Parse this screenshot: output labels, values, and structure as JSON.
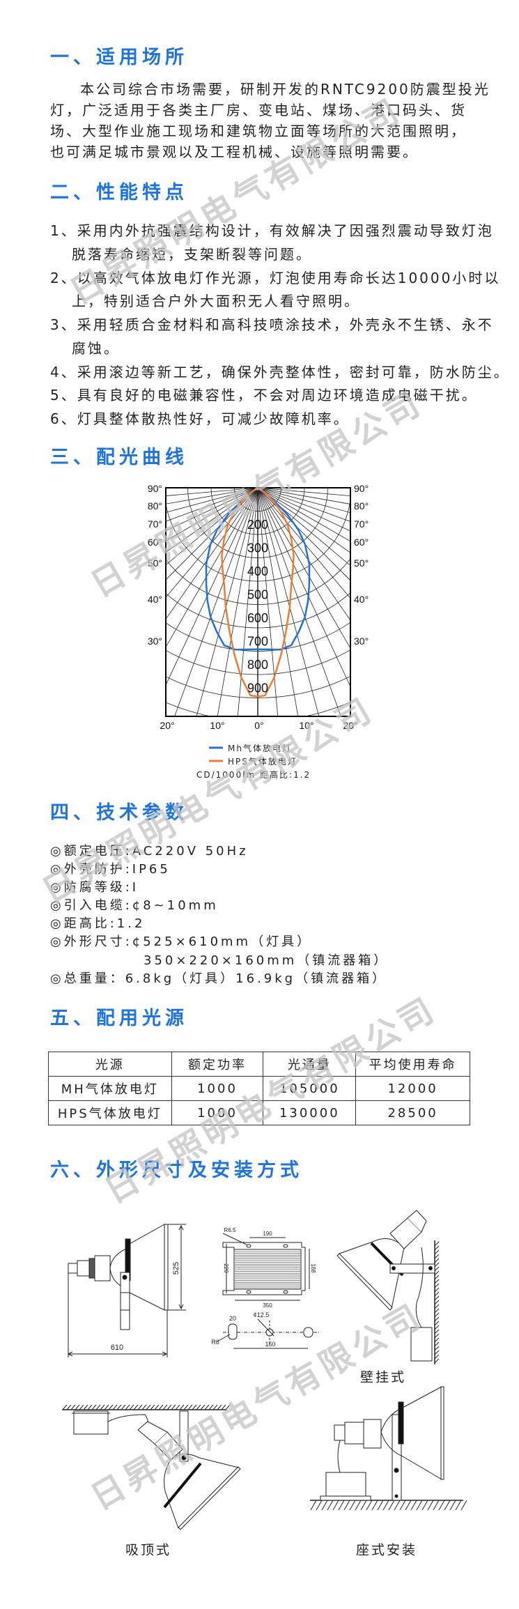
{
  "sections": {
    "s1": {
      "title": "一、适用场所",
      "lines": [
        "本公司综合市场需要，研制开发的RNTC9200防震型投光",
        "灯，广泛适用于各类主厂房、变电站、煤场、港口码头、货",
        "场、大型作业施工现场和建筑物立面等场所的大范围照明，",
        "也可满足城市景观以及工程机械、设施等照明需要。"
      ]
    },
    "s2": {
      "title": "二、性能特点",
      "items": [
        [
          "1、采用内外抗强震结构设计，有效解决了因强烈震动导致灯泡",
          "脱落寿命缩短，支架断裂等问题。"
        ],
        [
          "2、以高效气体放电灯作光源，灯泡使用寿命长达10000小时以",
          "上，特别适合户外大面积无人看守照明。"
        ],
        [
          "3、采用轻质合金材料和高科技喷涂技术，外壳永不生锈、永不",
          "腐蚀。"
        ],
        [
          "4、采用滚边等新工艺，确保外壳整体性，密封可靠，防水防尘。"
        ],
        [
          "5、具有良好的电磁兼容性，不会对周边环境造成电磁干扰。"
        ],
        [
          "6、灯具整体散热性好，可减少故障机率。"
        ]
      ]
    },
    "s3": {
      "title": "三、配光曲线"
    },
    "s4": {
      "title": "四、技术参数",
      "lines": [
        "◎额定电压:AC220V 50Hz",
        "◎外壳防护:IP65",
        "◎防腐等级:Ⅰ",
        "◎引入电缆:¢8~10mm",
        "◎距高比:1.2",
        "◎外形尺寸:¢525×610mm（灯具）",
        "350×220×160mm（镇流器箱）",
        "◎总重量：6.8kg（灯具）16.9kg（镇流器箱）"
      ]
    },
    "s5": {
      "title": "五、配用光源",
      "table": {
        "headers": [
          "光源",
          "额定功率",
          "光通量",
          "平均使用寿命"
        ],
        "rows": [
          [
            "MH气体放电灯",
            "1000",
            "105000",
            "12000"
          ],
          [
            "HPS气体放电灯",
            "1000",
            "130000",
            "28500"
          ]
        ]
      }
    },
    "s6": {
      "title": "六、外形尺寸及安装方式",
      "captions": {
        "wall": "壁挂式",
        "ceiling": "吸顶式",
        "floor": "座式安装"
      },
      "dims": {
        "d525": "525",
        "d610": "610",
        "r65": "R6.5",
        "d190": "190",
        "d220": "220",
        "d188": "188",
        "d350": "350",
        "d20": "20",
        "phi": "¢12.5",
        "r6": "R6",
        "d160": "160"
      }
    }
  },
  "chart_data": {
    "type": "polar-line",
    "units_label": "CD/1000lm",
    "ratio_label": "距高比:1.2",
    "footer": "CD/1000lm  距高比:1.2",
    "radial_ticks": [
      "200",
      "300",
      "400",
      "500",
      "600",
      "700",
      "800",
      "900"
    ],
    "radial_range": [
      0,
      1000
    ],
    "side_angle_ticks": [
      "90°",
      "80°",
      "70°",
      "60°",
      "50°",
      "40°",
      "30°"
    ],
    "bottom_angle_ticks": [
      "20°",
      "10°",
      "0°",
      "10°",
      "20°"
    ],
    "grid": true,
    "legend_placement": "bottom",
    "series": [
      {
        "name": "Mh气体放电灯",
        "color": "#1f6fe0",
        "points": [
          [
            0,
            692
          ],
          [
            8,
            700
          ],
          [
            12,
            690
          ],
          [
            16,
            640
          ],
          [
            20,
            590
          ],
          [
            24,
            530
          ],
          [
            28,
            470
          ],
          [
            34,
            395
          ],
          [
            40,
            315
          ],
          [
            44,
            250
          ],
          [
            48,
            170
          ],
          [
            52,
            80
          ],
          [
            56,
            20
          ],
          [
            60,
            0
          ]
        ]
      },
      {
        "name": "HPS气体放电灯",
        "color": "#f07b30",
        "points": [
          [
            0,
            895
          ],
          [
            2,
            890
          ],
          [
            5,
            815
          ],
          [
            8,
            720
          ],
          [
            11,
            630
          ],
          [
            15,
            530
          ],
          [
            19,
            441
          ],
          [
            23,
            385
          ],
          [
            28,
            328
          ],
          [
            33,
            265
          ],
          [
            39,
            203
          ],
          [
            44,
            145
          ],
          [
            49,
            91
          ],
          [
            55,
            40
          ],
          [
            62,
            0
          ]
        ]
      }
    ]
  },
  "colors": {
    "heading": "#1b74e4"
  },
  "watermark": "日昇照明电气有限公司"
}
